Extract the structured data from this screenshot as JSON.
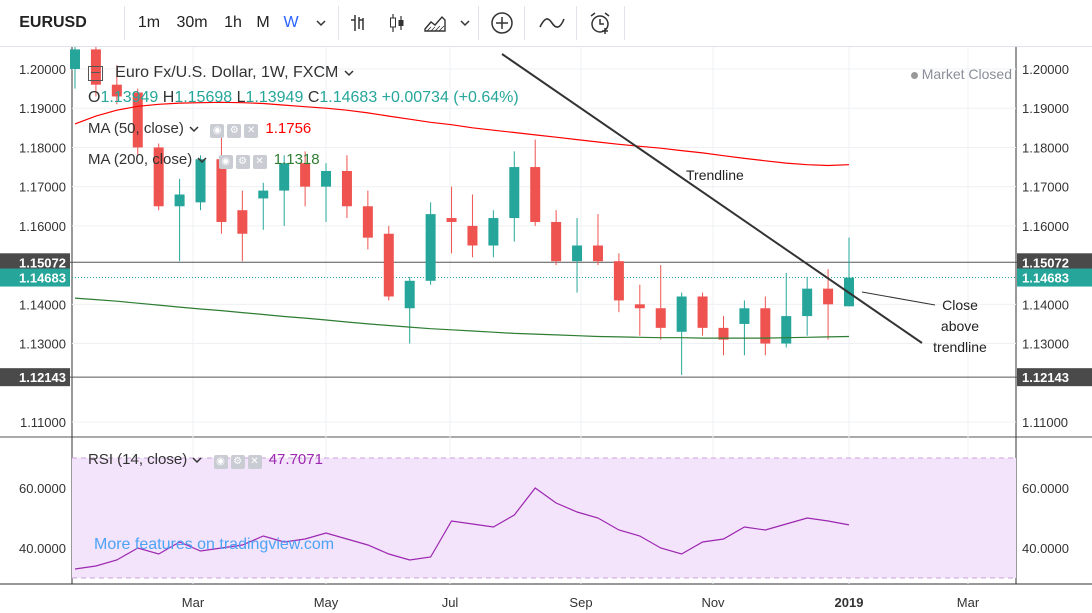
{
  "toolbar": {
    "symbol": "EURUSD",
    "intervals": [
      "1m",
      "30m",
      "1h",
      "M",
      "W"
    ],
    "active_interval": "W",
    "icons": [
      "chevron-down-icon",
      "bar-style-icon",
      "candle-style-icon",
      "area-style-icon",
      "add-compare-icon",
      "indicators-icon",
      "alert-icon"
    ]
  },
  "legend": {
    "title": "Euro Fx/U.S. Dollar, 1W, FXCM",
    "ohlc": {
      "o_label": "O",
      "o": "1.13949",
      "h_label": "H",
      "h": "1.15698",
      "l_label": "L",
      "l": "1.13949",
      "c_label": "C",
      "c": "1.14683",
      "change": "+0.00734 (+0.64%)"
    },
    "ma50": {
      "label": "MA (50, close)",
      "value": "1.1756",
      "color": "#ff0000"
    },
    "ma200": {
      "label": "MA (200, close)",
      "value": "1.1318",
      "color": "#2e7d32"
    },
    "rsi": {
      "label": "RSI (14, close)",
      "value": "47.7071",
      "color": "#9c27b0"
    }
  },
  "status": {
    "market": "Market Closed"
  },
  "annotations": {
    "trendline": "Trendline",
    "close_above": [
      "Close",
      "above",
      "trendline"
    ]
  },
  "promo": "More features on tradingview.com",
  "chart_data": {
    "type": "candlestick",
    "y_ticks": [
      "1.20000",
      "1.19000",
      "1.18000",
      "1.17000",
      "1.16000",
      "1.15072",
      "1.14683",
      "1.14000",
      "1.13000",
      "1.12143",
      "1.11000"
    ],
    "ylim": [
      1.107,
      1.204
    ],
    "price_highlights": [
      {
        "label": "1.15072",
        "value": 1.15072,
        "color": "#4a4a4a"
      },
      {
        "label": "1.14683",
        "value": 1.14683,
        "color": "#26a69a"
      },
      {
        "label": "1.12143",
        "value": 1.12143,
        "color": "#4a4a4a"
      }
    ],
    "x_labels": [
      "Mar",
      "May",
      "Jul",
      "Sep",
      "Nov",
      "2019",
      "Mar"
    ],
    "up_color": "#26a69a",
    "down_color": "#ef5350",
    "candles": [
      {
        "o": 1.2,
        "h": 1.206,
        "l": 1.195,
        "c": 1.205
      },
      {
        "o": 1.205,
        "h": 1.208,
        "l": 1.193,
        "c": 1.196
      },
      {
        "o": 1.196,
        "h": 1.201,
        "l": 1.191,
        "c": 1.193
      },
      {
        "o": 1.194,
        "h": 1.195,
        "l": 1.178,
        "c": 1.18
      },
      {
        "o": 1.18,
        "h": 1.181,
        "l": 1.164,
        "c": 1.165
      },
      {
        "o": 1.165,
        "h": 1.172,
        "l": 1.151,
        "c": 1.168
      },
      {
        "o": 1.166,
        "h": 1.178,
        "l": 1.164,
        "c": 1.177
      },
      {
        "o": 1.177,
        "h": 1.1855,
        "l": 1.158,
        "c": 1.161
      },
      {
        "o": 1.164,
        "h": 1.169,
        "l": 1.151,
        "c": 1.158
      },
      {
        "o": 1.167,
        "h": 1.171,
        "l": 1.159,
        "c": 1.169
      },
      {
        "o": 1.169,
        "h": 1.178,
        "l": 1.16,
        "c": 1.176
      },
      {
        "o": 1.176,
        "h": 1.179,
        "l": 1.165,
        "c": 1.17
      },
      {
        "o": 1.17,
        "h": 1.176,
        "l": 1.161,
        "c": 1.174
      },
      {
        "o": 1.174,
        "h": 1.178,
        "l": 1.162,
        "c": 1.165
      },
      {
        "o": 1.165,
        "h": 1.169,
        "l": 1.154,
        "c": 1.157
      },
      {
        "o": 1.158,
        "h": 1.16,
        "l": 1.141,
        "c": 1.142
      },
      {
        "o": 1.139,
        "h": 1.147,
        "l": 1.13,
        "c": 1.146
      },
      {
        "o": 1.146,
        "h": 1.166,
        "l": 1.145,
        "c": 1.163
      },
      {
        "o": 1.162,
        "h": 1.17,
        "l": 1.153,
        "c": 1.161
      },
      {
        "o": 1.16,
        "h": 1.168,
        "l": 1.152,
        "c": 1.155
      },
      {
        "o": 1.155,
        "h": 1.164,
        "l": 1.152,
        "c": 1.162
      },
      {
        "o": 1.162,
        "h": 1.179,
        "l": 1.156,
        "c": 1.175
      },
      {
        "o": 1.175,
        "h": 1.182,
        "l": 1.16,
        "c": 1.161
      },
      {
        "o": 1.161,
        "h": 1.164,
        "l": 1.15,
        "c": 1.151
      },
      {
        "o": 1.151,
        "h": 1.162,
        "l": 1.143,
        "c": 1.155
      },
      {
        "o": 1.155,
        "h": 1.163,
        "l": 1.15,
        "c": 1.151
      },
      {
        "o": 1.151,
        "h": 1.153,
        "l": 1.138,
        "c": 1.141
      },
      {
        "o": 1.14,
        "h": 1.145,
        "l": 1.132,
        "c": 1.139
      },
      {
        "o": 1.139,
        "h": 1.15,
        "l": 1.131,
        "c": 1.134
      },
      {
        "o": 1.133,
        "h": 1.143,
        "l": 1.122,
        "c": 1.142
      },
      {
        "o": 1.142,
        "h": 1.143,
        "l": 1.132,
        "c": 1.134
      },
      {
        "o": 1.134,
        "h": 1.137,
        "l": 1.127,
        "c": 1.131
      },
      {
        "o": 1.135,
        "h": 1.141,
        "l": 1.127,
        "c": 1.139
      },
      {
        "o": 1.139,
        "h": 1.142,
        "l": 1.127,
        "c": 1.13
      },
      {
        "o": 1.13,
        "h": 1.148,
        "l": 1.129,
        "c": 1.137
      },
      {
        "o": 1.137,
        "h": 1.147,
        "l": 1.132,
        "c": 1.144
      },
      {
        "o": 1.144,
        "h": 1.149,
        "l": 1.131,
        "c": 1.14
      },
      {
        "o": 1.1395,
        "h": 1.157,
        "l": 1.1395,
        "c": 1.1468
      }
    ],
    "ma50": [
      1.186,
      1.188,
      1.1895,
      1.1905,
      1.191,
      1.1913,
      1.1914,
      1.1915,
      1.1914,
      1.1912,
      1.1908,
      1.1904,
      1.19,
      1.1895,
      1.1888,
      1.188,
      1.1872,
      1.1864,
      1.1858,
      1.185,
      1.1844,
      1.1838,
      1.1832,
      1.1826,
      1.182,
      1.1814,
      1.1808,
      1.1803,
      1.1798,
      1.1792,
      1.1786,
      1.1779,
      1.1772,
      1.1766,
      1.176,
      1.1756,
      1.1754,
      1.1756
    ],
    "ma200": [
      1.1416,
      1.1412,
      1.1408,
      1.1403,
      1.1398,
      1.1393,
      1.1388,
      1.1384,
      1.1379,
      1.1374,
      1.1369,
      1.1365,
      1.136,
      1.1355,
      1.135,
      1.1346,
      1.1342,
      1.1338,
      1.1335,
      1.1332,
      1.1329,
      1.1326,
      1.1324,
      1.1322,
      1.132,
      1.1318,
      1.1317,
      1.1316,
      1.1315,
      1.1315,
      1.1314,
      1.1314,
      1.1314,
      1.1314,
      1.1315,
      1.1316,
      1.1317,
      1.1318
    ],
    "rsi": {
      "y_ticks": [
        "60.0000",
        "40.0000"
      ],
      "ylim": [
        28,
        75
      ],
      "upper": 70,
      "lower": 30,
      "values": [
        33,
        34,
        36,
        40,
        38,
        42,
        39,
        40,
        41,
        44,
        42,
        43,
        45,
        43,
        41,
        38,
        36,
        37,
        49,
        48,
        47,
        51,
        60,
        55,
        52,
        50,
        46,
        44,
        40,
        38,
        42,
        43,
        47,
        46,
        48,
        50,
        49,
        47.7
      ]
    }
  }
}
